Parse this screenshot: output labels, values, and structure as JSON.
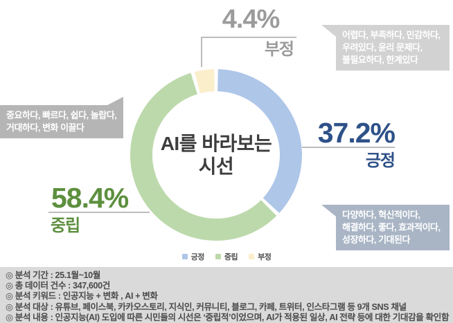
{
  "chart": {
    "title_line1": "AI를 바라보는",
    "title_line2": "시선"
  },
  "chart_data": {
    "type": "pie",
    "donut": true,
    "title": "AI를 바라보는 시선",
    "direction": "clockwise",
    "start_angle_deg": 0,
    "legend_position": "bottom",
    "series": [
      {
        "name": "긍정",
        "value": 37.2,
        "color": "#aec6e8",
        "text_color": "#2e5188"
      },
      {
        "name": "중립",
        "value": 58.4,
        "color": "#bcd9ab",
        "text_color": "#5c8f3e"
      },
      {
        "name": "부정",
        "value": 4.4,
        "color": "#fbeecb",
        "text_color": "#9b9b9b"
      }
    ]
  },
  "callouts": {
    "negative": {
      "pct": "4.4%",
      "label": "부정",
      "box_lines": [
        "어렵다, 부족하다, 민감하다,",
        "우려있다, 윤리 문제다,",
        "불필요하다, 한계있다"
      ]
    },
    "positive": {
      "pct": "37.2%",
      "label": "긍정",
      "box_lines": [
        "다양하다, 혁신적이다,",
        "해결하다, 좋다, 효과적이다,",
        "성장하다, 기대된다"
      ]
    },
    "neutral": {
      "pct": "58.4%",
      "label": "중립",
      "box_lines": [
        "중요하다, 빠르다, 쉽다, 놀랍다,",
        "거대하다, 변화 이끌다"
      ]
    }
  },
  "legend": {
    "items": [
      {
        "label": "긍정"
      },
      {
        "label": "중립"
      },
      {
        "label": "부정"
      }
    ]
  },
  "footer": {
    "lines": [
      "◎ 분석 기간 : 25.1월~10월",
      "◎ 총 데이터 건수 : 347,600건",
      "◎ 분석 키워드 : 인공지능 + 변화 , AI + 변화",
      "◎ 분석 대상 : 유튜브, 페이스북, 카카오스토리, 지식인, 커뮤니티, 블로그, 카페, 트위터, 인스타그램 등 9개 SNS 채널",
      "◎ 분석 내용 : 인공지능(AI) 도입에 따른 시민들의 시선은 ‘중립적’이었으며, AI가 적용된 일상, AI 전략 등에 대한 기대감을 확인함"
    ]
  }
}
